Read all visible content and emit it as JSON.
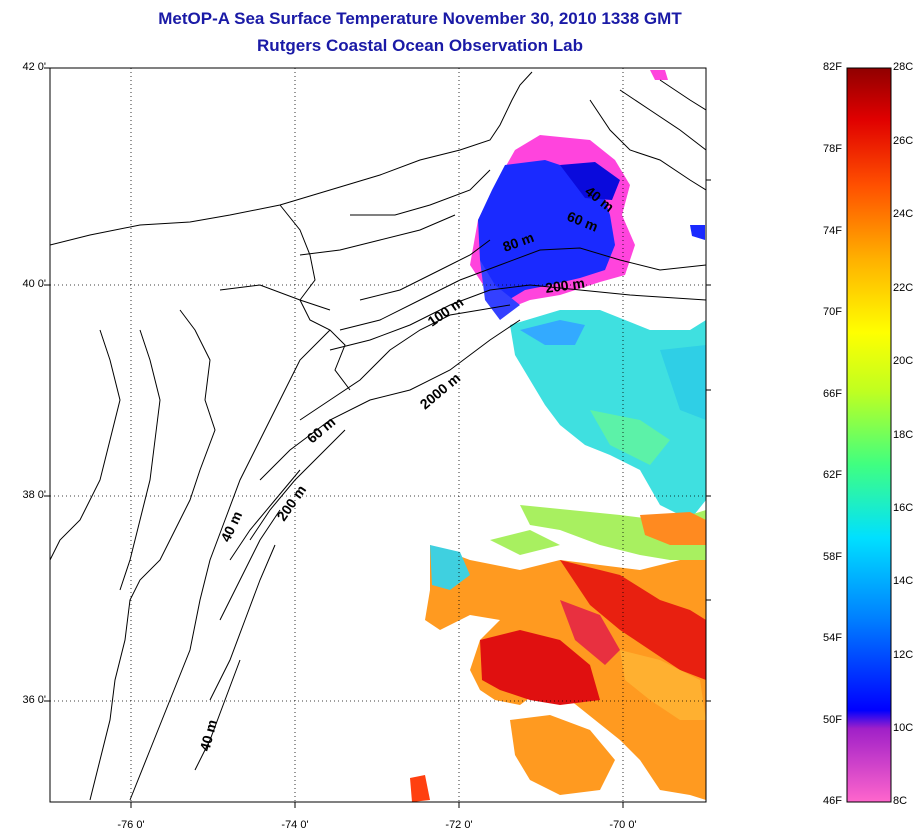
{
  "title_line1": "MetOP-A Sea Surface Temperature November 30, 2010 1338 GMT",
  "title_line2": "Rutgers Coastal Ocean Observation Lab",
  "lat_labels": [
    "42 0'",
    "40 0'",
    "38 0'",
    "36 0'"
  ],
  "lon_labels": [
    "-76 0'",
    "-74 0'",
    "-72 0'",
    "-70 0'"
  ],
  "contour_labels": [
    "40 m",
    "60 m",
    "80 m",
    "200 m",
    "100 m",
    "2000 m",
    "60 m",
    "200 m",
    "40 m",
    "40 m"
  ],
  "colorbar": {
    "fahrenheit": [
      "82F",
      "78F",
      "74F",
      "70F",
      "66F",
      "62F",
      "58F",
      "54F",
      "50F",
      "46F"
    ],
    "celsius": [
      "28C",
      "26C",
      "24C",
      "22C",
      "20C",
      "18C",
      "16C",
      "14C",
      "12C",
      "10C",
      "8C"
    ],
    "colors": [
      "#ff66cc",
      "#a020c8",
      "#0000ff",
      "#0080ff",
      "#00e0ff",
      "#40ff80",
      "#c0ff20",
      "#ffff00",
      "#ffb000",
      "#ff5000",
      "#e00000",
      "#900000"
    ]
  }
}
